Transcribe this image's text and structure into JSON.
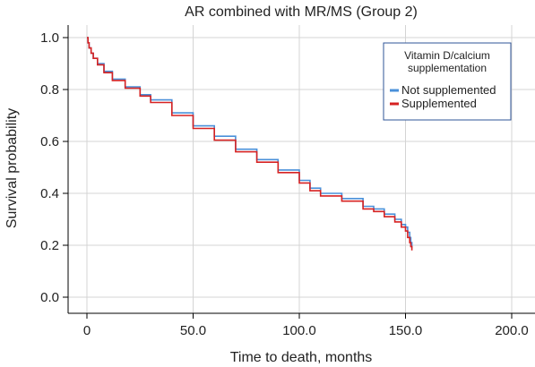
{
  "chart_data": {
    "type": "line",
    "title": "AR combined with MR/MS (Group 2)",
    "xlabel": "Time to death, months",
    "ylabel": "Survival probability",
    "xlim": [
      0,
      200
    ],
    "ylim": [
      0,
      1
    ],
    "x_ticks": [
      0,
      50,
      100,
      150,
      200
    ],
    "x_tick_labels": [
      "0",
      "50.0",
      "100.0",
      "150.0",
      "200.0"
    ],
    "y_ticks": [
      0,
      0.2,
      0.4,
      0.6,
      0.8,
      1.0
    ],
    "y_tick_labels": [
      "0.0",
      "0.2",
      "0.4",
      "0.6",
      "0.8",
      "1.0"
    ],
    "grid": true,
    "legend": {
      "title_lines": [
        "Vitamin D/calcium",
        "supplementation"
      ],
      "placement": "top-right"
    },
    "series": [
      {
        "name": "Not supplemented",
        "color": "#4a90d9",
        "x": [
          0,
          0.5,
          1,
          2,
          3,
          5,
          8,
          12,
          18,
          25,
          30,
          40,
          50,
          60,
          70,
          80,
          90,
          100,
          105,
          110,
          120,
          130,
          135,
          140,
          145,
          148,
          150,
          151,
          152,
          152.5,
          153
        ],
        "y": [
          1.0,
          0.98,
          0.96,
          0.94,
          0.92,
          0.9,
          0.87,
          0.84,
          0.81,
          0.78,
          0.76,
          0.71,
          0.66,
          0.62,
          0.57,
          0.53,
          0.49,
          0.45,
          0.42,
          0.4,
          0.38,
          0.35,
          0.34,
          0.32,
          0.3,
          0.28,
          0.27,
          0.25,
          0.23,
          0.21,
          0.19
        ]
      },
      {
        "name": "Supplemented",
        "color": "#d62222",
        "x": [
          0,
          0.5,
          1,
          2,
          3,
          5,
          8,
          12,
          18,
          25,
          30,
          40,
          50,
          60,
          70,
          80,
          90,
          100,
          105,
          110,
          120,
          130,
          135,
          140,
          145,
          148,
          150,
          151,
          152,
          152.5,
          153
        ],
        "y": [
          1.0,
          0.98,
          0.96,
          0.94,
          0.92,
          0.895,
          0.865,
          0.835,
          0.805,
          0.775,
          0.75,
          0.7,
          0.65,
          0.605,
          0.56,
          0.52,
          0.48,
          0.44,
          0.41,
          0.39,
          0.37,
          0.34,
          0.33,
          0.31,
          0.29,
          0.27,
          0.255,
          0.23,
          0.21,
          0.195,
          0.18
        ]
      }
    ]
  }
}
